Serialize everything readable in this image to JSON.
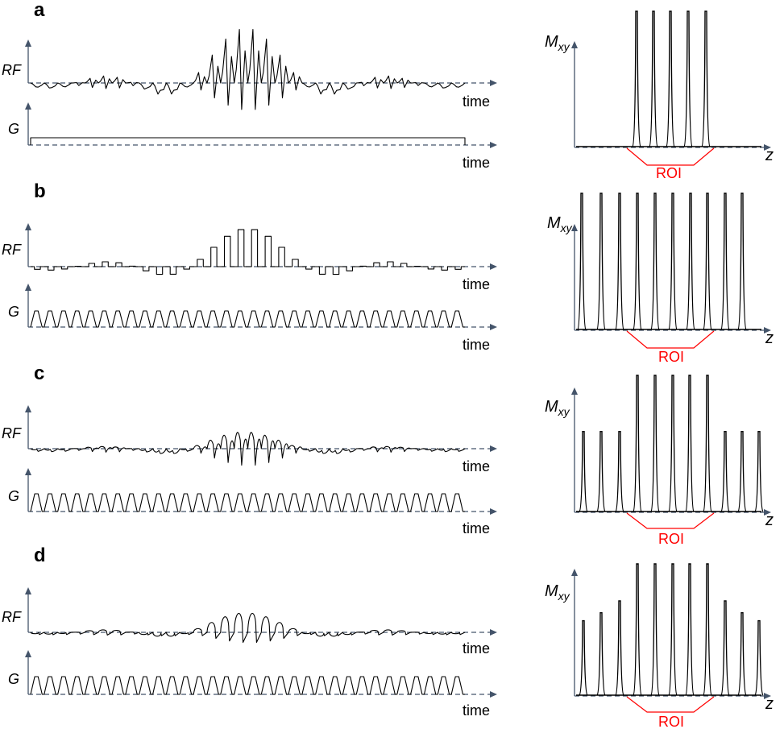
{
  "axes": {
    "rf_label": "RF",
    "g_label": "G",
    "time_label": "time",
    "m_label_main": "M",
    "m_label_sub": "xy",
    "z_label": "z",
    "roi_label": "ROI"
  },
  "colors": {
    "axis": "#44546a",
    "roi": "#ff0000",
    "trace": "#000000"
  },
  "panels": [
    {
      "id": "a",
      "label": "a",
      "rf": {
        "style": "sinc-oscillating",
        "n_subpulses": 32,
        "envelope": "sinc"
      },
      "gradient": {
        "style": "constant"
      },
      "profile": {
        "peaks": [
          1,
          1,
          1,
          1,
          1
        ],
        "roi_span": [
          0,
          4
        ]
      }
    },
    {
      "id": "b",
      "label": "b",
      "rf": {
        "style": "hard-subpulses",
        "n_subpulses": 32,
        "envelope": "sinc"
      },
      "gradient": {
        "style": "trapezoid-train",
        "n_lobes": 32
      },
      "profile": {
        "peaks": [
          1,
          1,
          1,
          1,
          1,
          1,
          1,
          1,
          1,
          1
        ],
        "roi_span": [
          3,
          7
        ]
      }
    },
    {
      "id": "c",
      "label": "c",
      "rf": {
        "style": "vse-oscillating",
        "n_subpulses": 32,
        "envelope": "sinc"
      },
      "gradient": {
        "style": "trapezoid-train",
        "n_lobes": 32
      },
      "profile": {
        "peaks": [
          0.59,
          0.59,
          0.59,
          1,
          1,
          1,
          1,
          1,
          0.59,
          0.59,
          0.59
        ],
        "roi_span": [
          3,
          7
        ]
      }
    },
    {
      "id": "d",
      "label": "d",
      "rf": {
        "style": "vse-rounded",
        "n_subpulses": 32,
        "envelope": "sinc"
      },
      "gradient": {
        "style": "trapezoid-train",
        "n_lobes": 32
      },
      "profile": {
        "peaks": [
          0.57,
          0.63,
          0.72,
          1,
          1,
          1,
          1,
          1,
          0.72,
          0.63,
          0.57
        ],
        "roi_span": [
          3,
          7
        ]
      }
    }
  ]
}
